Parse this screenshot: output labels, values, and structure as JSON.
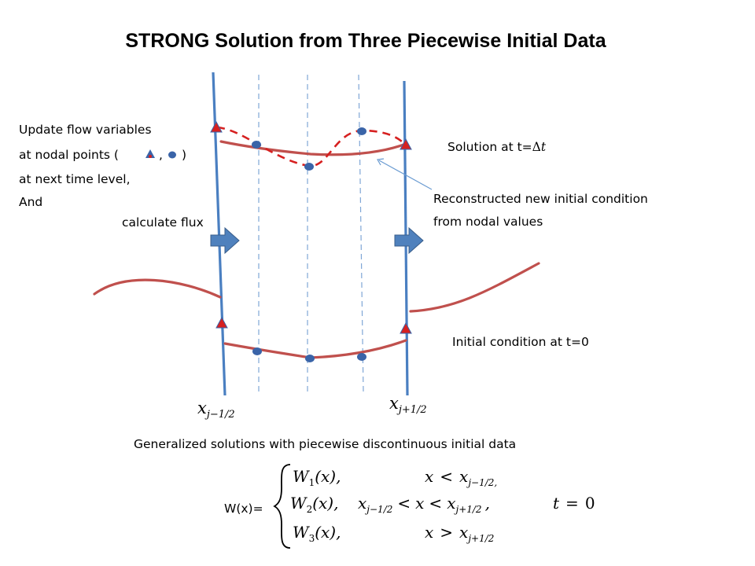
{
  "title": "STRONG Solution from  Three Piecewise Initial Data",
  "left_note": {
    "line1": "Update flow variables",
    "line2_a": "at nodal points (",
    "line2_sep": ",",
    "line2_b": ")",
    "line3": "at next time level,",
    "line4": "And"
  },
  "flux_label": "calculate flux",
  "solution_label": {
    "prefix": "Solution at t=",
    "delta": "Δ",
    "t": "t"
  },
  "reconstructed_label": {
    "line1": "Reconstructed new initial condition",
    "line2": "from nodal values"
  },
  "initial_label": "Initial condition at t=0",
  "interface_left": {
    "x": "x",
    "sub": "j−1/2"
  },
  "interface_right": {
    "x": "x",
    "sub": "j+1/2"
  },
  "caption": "Generalized solutions with piecewise discontinuous initial data",
  "equation": {
    "lhs": "W(x)=",
    "row1": {
      "func": "W",
      "sub": "1",
      "arg": "(x),",
      "cond_x": "x",
      "cond_op": "<",
      "cond_rhs_x": "x",
      "cond_rhs_sub": "j−1/2,"
    },
    "row2": {
      "func": "W",
      "sub": "2",
      "arg": "(x),",
      "c_x1": "x",
      "c_sub1": "j−1/2",
      "c_op1": "<",
      "c_x": "x",
      "c_op2": "<",
      "c_x2": "x",
      "c_sub2": "j+1/2",
      "c_comma": ",",
      "t_var": "t",
      "t_eq": "=",
      "t_val": "0"
    },
    "row3": {
      "func": "W",
      "sub": "3",
      "arg": "(x),",
      "cond_x": "x",
      "cond_op": ">",
      "cond_rhs_x": "x",
      "cond_rhs_sub": "j+1/2"
    }
  },
  "colors": {
    "interface_line": "#4a7fc1",
    "cell_dash": "#7fa6d6",
    "solution_curve": "#c0504d",
    "dashed_curve": "#d62020",
    "node_point": "#3a64a8",
    "node_triangle": "#d62020",
    "flux_arrow": "#4f81bd",
    "pointer": "#6a9bd1"
  },
  "icons": {
    "node_triangle": "red-triangle-node-icon",
    "node_circle": "blue-circle-node-icon",
    "flux_arrow": "right-arrow-icon"
  }
}
